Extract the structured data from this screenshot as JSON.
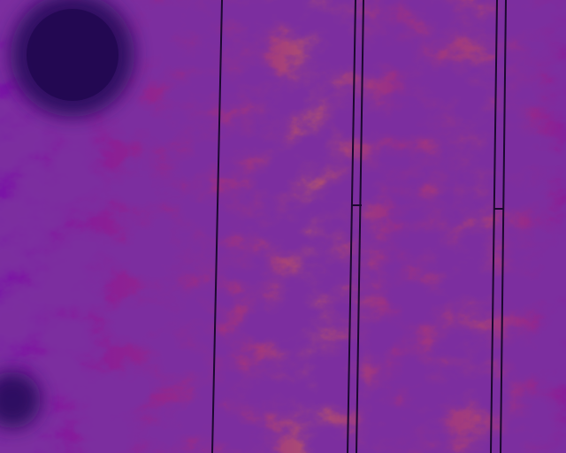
{
  "image": {
    "kind": "thermal-aerial-photo",
    "palette": [
      "#1a0b4a",
      "#3b0a78",
      "#6b10a0",
      "#9a1ab0",
      "#c8268c",
      "#ef3f4a",
      "#fb6a1e",
      "#ffa21a",
      "#ffd840",
      "#fffbd0"
    ],
    "features": [
      {
        "name": "dark-cold-circle",
        "shape": "circle"
      },
      {
        "name": "dark-cold-corner-blob",
        "shape": "circle"
      },
      {
        "name": "thin-dark-line",
        "shape": "line"
      },
      {
        "name": "double-dark-line-center",
        "shape": "parallel-lines"
      },
      {
        "name": "double-dark-line-right",
        "shape": "parallel-lines"
      }
    ]
  }
}
